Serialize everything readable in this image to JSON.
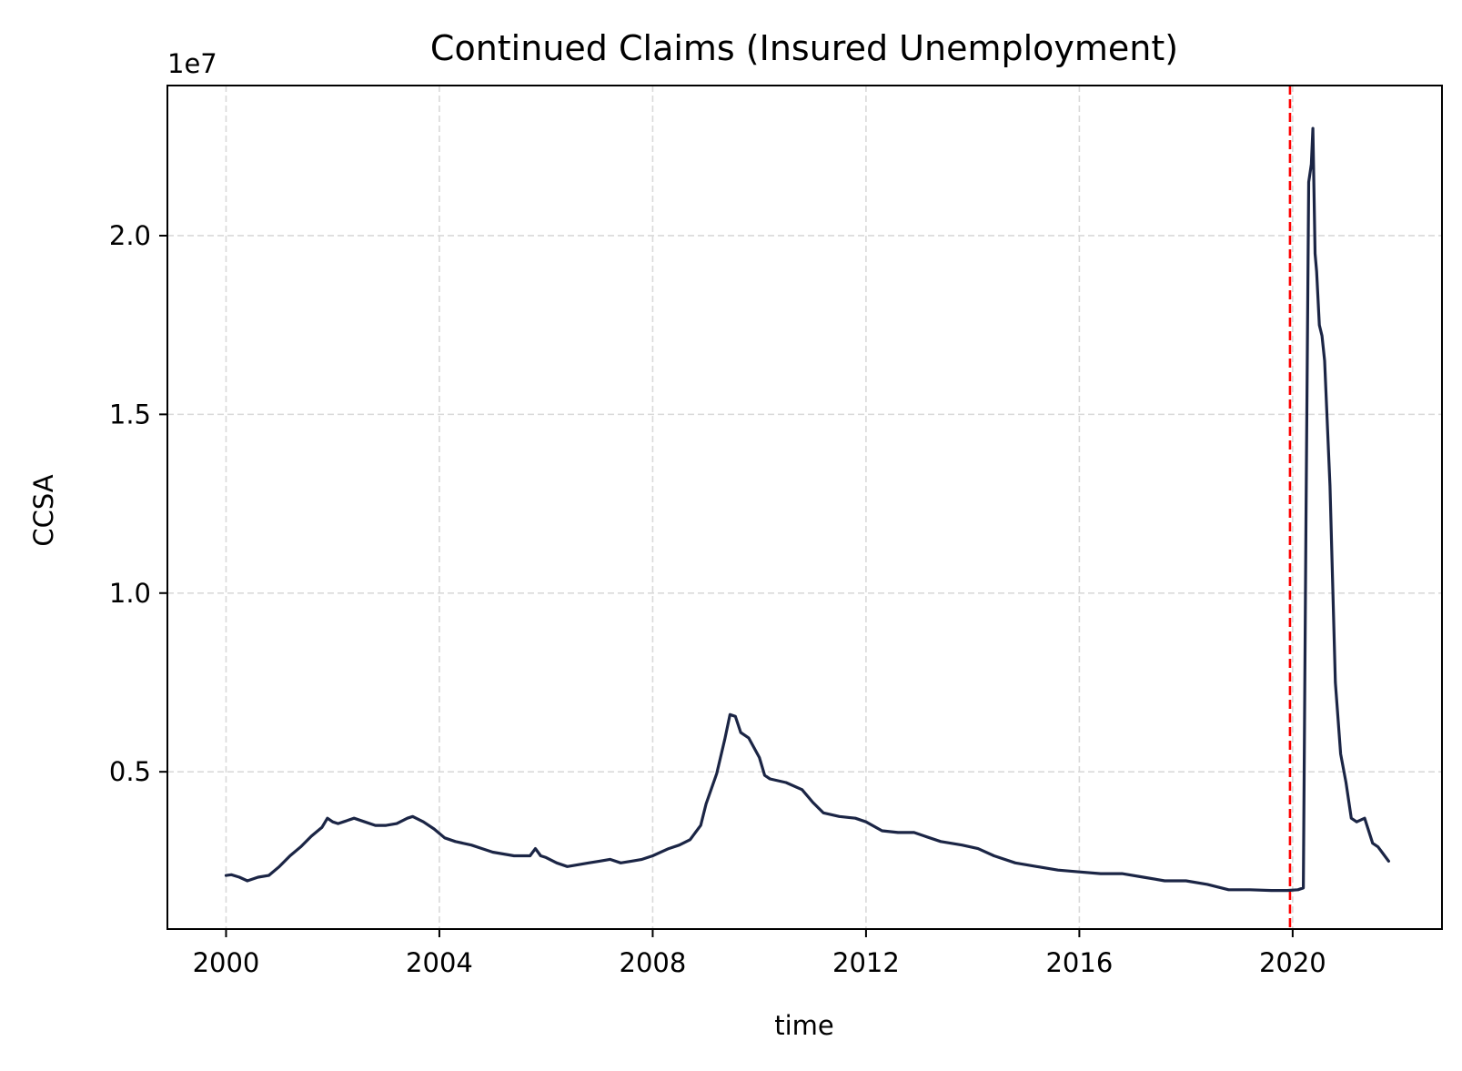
{
  "chart_data": {
    "type": "line",
    "title": "Continued Claims (Insured Unemployment)",
    "xlabel": "time",
    "ylabel": "CCSA",
    "y_offset_label": "1e7",
    "y_scale_factor": 10000000,
    "xlim": [
      1998.9,
      2022.8
    ],
    "ylim": [
      600000,
      24200000
    ],
    "x_ticks": [
      2000,
      2004,
      2008,
      2012,
      2016,
      2020
    ],
    "x_tick_labels": [
      "2000",
      "2004",
      "2008",
      "2012",
      "2016",
      "2020"
    ],
    "y_ticks": [
      5000000,
      10000000,
      15000000,
      20000000
    ],
    "y_tick_labels": [
      "0.5",
      "1.0",
      "1.5",
      "2.0"
    ],
    "grid": true,
    "line_color": "#1b2545",
    "marker_line": {
      "x": 2019.95,
      "color": "#ff0000",
      "style": "dashed"
    },
    "series": [
      {
        "x": [
          2000.0,
          2000.1,
          2000.25,
          2000.4,
          2000.6,
          2000.8,
          2001.0,
          2001.2,
          2001.4,
          2001.6,
          2001.8,
          2001.9,
          2002.0,
          2002.1,
          2002.2,
          2002.4,
          2002.6,
          2002.8,
          2003.0,
          2003.2,
          2003.4,
          2003.5,
          2003.7,
          2003.9,
          2004.1,
          2004.3,
          2004.6,
          2004.8,
          2005.0,
          2005.2,
          2005.4,
          2005.6,
          2005.7,
          2005.8,
          2005.9,
          2006.0,
          2006.2,
          2006.4,
          2006.6,
          2006.8,
          2007.0,
          2007.2,
          2007.4,
          2007.6,
          2007.8,
          2008.0,
          2008.3,
          2008.5,
          2008.7,
          2008.9,
          2009.0,
          2009.2,
          2009.35,
          2009.45,
          2009.55,
          2009.65,
          2009.8,
          2010.0,
          2010.1,
          2010.2,
          2010.5,
          2010.8,
          2011.0,
          2011.2,
          2011.5,
          2011.8,
          2012.0,
          2012.3,
          2012.6,
          2012.9,
          2013.1,
          2013.4,
          2013.8,
          2014.1,
          2014.4,
          2014.8,
          2015.2,
          2015.6,
          2016.0,
          2016.4,
          2016.8,
          2017.2,
          2017.6,
          2018.0,
          2018.4,
          2018.8,
          2019.2,
          2019.6,
          2019.9,
          2020.1,
          2020.2,
          2020.25,
          2020.3,
          2020.35,
          2020.38,
          2020.42,
          2020.45,
          2020.5,
          2020.55,
          2020.6,
          2020.7,
          2020.8,
          2020.9,
          2021.0,
          2021.1,
          2021.2,
          2021.35,
          2021.5,
          2021.6,
          2021.7,
          2021.8
        ],
        "y": [
          2100000,
          2120000,
          2050000,
          1950000,
          2050000,
          2100000,
          2350000,
          2650000,
          2900000,
          3200000,
          3450000,
          3700000,
          3600000,
          3550000,
          3600000,
          3700000,
          3600000,
          3500000,
          3500000,
          3550000,
          3700000,
          3750000,
          3600000,
          3400000,
          3150000,
          3050000,
          2950000,
          2850000,
          2750000,
          2700000,
          2650000,
          2650000,
          2650000,
          2850000,
          2650000,
          2600000,
          2450000,
          2350000,
          2400000,
          2450000,
          2500000,
          2550000,
          2450000,
          2500000,
          2550000,
          2650000,
          2850000,
          2950000,
          3100000,
          3500000,
          4100000,
          4950000,
          5900000,
          6600000,
          6550000,
          6100000,
          5950000,
          5400000,
          4900000,
          4800000,
          4700000,
          4500000,
          4150000,
          3850000,
          3750000,
          3700000,
          3600000,
          3350000,
          3300000,
          3300000,
          3200000,
          3050000,
          2950000,
          2850000,
          2650000,
          2450000,
          2350000,
          2250000,
          2200000,
          2150000,
          2150000,
          2050000,
          1950000,
          1950000,
          1850000,
          1700000,
          1700000,
          1680000,
          1680000,
          1700000,
          1750000,
          12000000,
          21500000,
          22000000,
          23000000,
          19500000,
          19000000,
          17500000,
          17200000,
          16500000,
          13000000,
          7500000,
          5500000,
          4700000,
          3700000,
          3600000,
          3700000,
          3000000,
          2900000,
          2700000,
          2500000
        ]
      }
    ]
  }
}
